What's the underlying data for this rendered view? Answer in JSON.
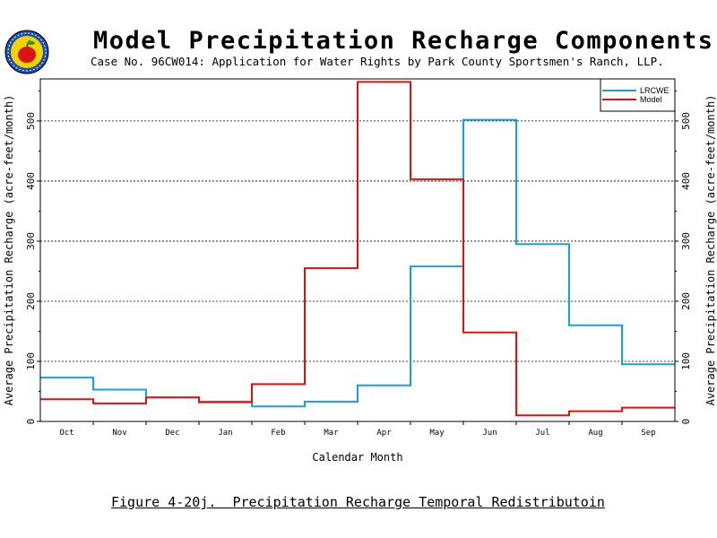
{
  "title": "Model Precipitation Recharge Components",
  "subtitle": "Case No. 96CW014: Application for Water Rights by Park County Sportsmen's Ranch, LLP.",
  "caption": "Figure 4-20j.  Precipitation Recharge Temporal Redistributoin",
  "colors": {
    "LRCWE": "#1aa0d8",
    "Model": "#e01010"
  },
  "chart_data": {
    "type": "line",
    "step": true,
    "categories": [
      "Oct",
      "Nov",
      "Dec",
      "Jan",
      "Feb",
      "Mar",
      "Apr",
      "May",
      "Jun",
      "Jul",
      "Aug",
      "Sep"
    ],
    "xlabel": "Calendar Month",
    "ylabel": "Average Precipitation Recharge (acre-feet/month)",
    "ylim": [
      0,
      570
    ],
    "yticks": [
      0,
      100,
      200,
      300,
      400,
      500
    ],
    "grid": "horizontal dashed",
    "legend_position": "top-right",
    "series": [
      {
        "name": "LRCWE",
        "values": [
          73,
          53,
          40,
          33,
          25,
          33,
          60,
          258,
          502,
          295,
          160,
          95
        ]
      },
      {
        "name": "Model",
        "values": [
          37,
          30,
          40,
          32,
          62,
          255,
          565,
          403,
          148,
          10,
          17,
          23
        ]
      }
    ]
  }
}
